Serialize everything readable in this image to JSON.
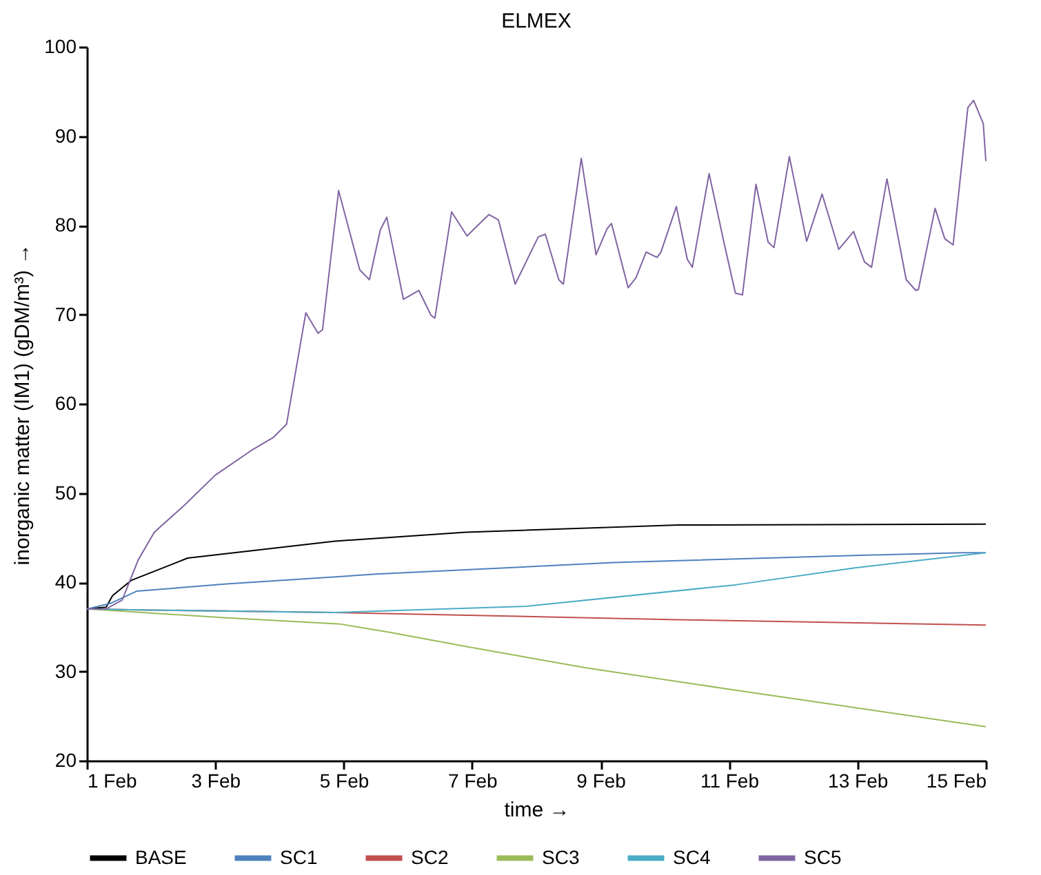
{
  "chart_data": {
    "type": "line",
    "title": "ELMEX",
    "xlabel": "time →",
    "ylabel": "inorganic matter (IM1) (gDM/m³) →",
    "legend": "bottom",
    "xlim": [
      "--02-01",
      "--02-15"
    ],
    "ylim": [
      20,
      100
    ],
    "xticks": [
      {
        "value": "--02-01",
        "label": "1 Feb"
      },
      {
        "value": "--02-03",
        "label": "3 Feb"
      },
      {
        "value": "--02-05",
        "label": "5 Feb"
      },
      {
        "value": "--02-07",
        "label": "7 Feb"
      },
      {
        "value": "--02-09",
        "label": "9 Feb"
      },
      {
        "value": "--02-11",
        "label": "11 Feb"
      },
      {
        "value": "--02-13",
        "label": "13 Feb"
      },
      {
        "value": "--02-15",
        "label": "15 Feb"
      }
    ],
    "yticks": [
      20,
      30,
      40,
      50,
      60,
      70,
      80,
      90,
      100
    ],
    "series": [
      {
        "name": "BASE",
        "color": "#000000",
        "x": [
          "--02-01",
          "--02-01T07:12",
          "--02-01T09:36",
          "--02-01T16:34",
          "--02-02T13:41",
          "--02-04T20:38",
          "--02-06T21:36",
          "--02-10T04:48",
          "--02-15"
        ],
        "values": [
          37,
          37.2,
          38.5,
          40.2,
          42.7,
          44.6,
          45.6,
          46.4,
          46.5
        ]
      },
      {
        "name": "SC1",
        "color": "#4f81bd",
        "x": [
          "--02-01",
          "--02-01T08:38",
          "--02-01T18:43",
          "--02-03T04:19",
          "--02-05T12:00",
          "--02-09T04:48",
          "--02-12T23:02",
          "--02-14T15:22",
          "--02-15"
        ],
        "values": [
          37,
          37.6,
          39.0,
          39.8,
          40.9,
          42.2,
          43.0,
          43.3,
          43.3
        ]
      },
      {
        "name": "SC2",
        "color": "#c0504d",
        "x": [
          "--02-01",
          "--02-01T19:12",
          "--02-04T20:38",
          "--02-10T04:48",
          "--02-15"
        ],
        "values": [
          37,
          36.9,
          36.6,
          35.8,
          35.2
        ]
      },
      {
        "name": "SC3",
        "color": "#9bbb59",
        "x": [
          "--02-01",
          "--02-03T04:19",
          "--02-04T22:48",
          "--02-05T16:48",
          "--02-06T21:36",
          "--02-08T18:29",
          "--02-11T02:24",
          "--02-15"
        ],
        "values": [
          37,
          36.0,
          35.3,
          34.4,
          32.8,
          30.4,
          27.9,
          23.8
        ]
      },
      {
        "name": "SC4",
        "color": "#4bacc6",
        "x": [
          "--02-01",
          "--02-01T19:12",
          "--02-04T20:38",
          "--02-07T20:10",
          "--02-11T02:24",
          "--02-12T23:02",
          "--02-15"
        ],
        "values": [
          37,
          36.9,
          36.6,
          37.3,
          39.7,
          41.6,
          43.3
        ]
      },
      {
        "name": "SC5",
        "color": "#8064a2",
        "x": [
          "--02-01",
          "--02-01T07:12",
          "--02-01T13:12",
          "--02-01T19:12",
          "--02-02T01:12",
          "--02-02T12:00",
          "--02-03",
          "--02-03T14:10",
          "--02-03T21:36",
          "--02-04T02:38",
          "--02-04T09:50",
          "--02-04T14:24",
          "--02-04T16:05",
          "--02-04T22:05",
          "--02-05T06:00",
          "--02-05T09:36",
          "--02-05T13:41",
          "--02-05T16:05",
          "--02-05T22:19",
          "--02-06T04:05",
          "--02-06T08:38",
          "--02-06T10:05",
          "--02-06T16:19",
          "--02-06T22:05",
          "--02-07T06:14",
          "--02-07T09:50",
          "--02-07T16:05",
          "--02-08T00:43",
          "--02-08T03:22",
          "--02-08T08:24",
          "--02-08T10:05",
          "--02-08T16:48",
          "--02-08T22:19",
          "--02-09T02:24",
          "--02-09T04:05",
          "--02-09T10:19",
          "--02-09T13:12",
          "--02-09T17:02",
          "--02-09T21:07",
          "--02-09T22:34",
          "--02-10T04:19",
          "--02-10T08:24",
          "--02-10T10:19",
          "--02-10T16:34",
          "--02-10T22:19",
          "--02-11T02:24",
          "--02-11T05:02",
          "--02-11T10:05",
          "--02-11T14:38",
          "--02-11T16:48",
          "--02-11T22:34",
          "--02-12T05:02",
          "--02-12T10:48",
          "--02-12T17:02",
          "--02-12T22:34",
          "--02-13T02:38",
          "--02-13T05:17",
          "--02-13T11:02",
          "--02-13T18:14",
          "--02-13T21:50",
          "--02-13T22:48",
          "--02-14T05:02",
          "--02-14T08:38",
          "--02-14T11:46",
          "--02-14T17:17",
          "--02-14T19:26",
          "--02-14T23:02",
          "--02-15"
        ],
        "values": [
          37,
          37,
          38,
          42.5,
          45.6,
          48.5,
          52,
          54.9,
          56.2,
          57.7,
          70.2,
          67.9,
          68.3,
          83.9,
          75.0,
          73.9,
          79.5,
          80.9,
          71.7,
          72.7,
          69.9,
          69.6,
          81.5,
          78.8,
          81.2,
          80.6,
          73.4,
          78.7,
          79.0,
          73.9,
          73.4,
          87.5,
          76.7,
          79.6,
          80.2,
          73.0,
          74.1,
          77.0,
          76.4,
          77.0,
          82.1,
          76.2,
          75.3,
          85.8,
          77.8,
          72.4,
          72.2,
          84.6,
          78.1,
          77.5,
          87.7,
          78.2,
          83.5,
          77.3,
          79.3,
          75.9,
          75.3,
          85.2,
          73.9,
          72.7,
          72.8,
          81.9,
          78.5,
          77.8,
          93.2,
          94.0,
          91.4,
          87.2
        ]
      }
    ]
  }
}
